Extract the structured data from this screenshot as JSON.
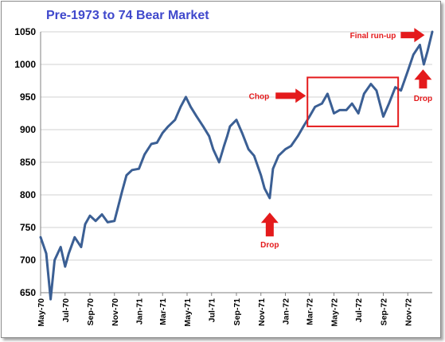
{
  "colors": {
    "title": "#3f48cc",
    "line": "#3b5f94",
    "annotation": "#e41a1c",
    "grid": "#d0d0d0",
    "axis": "#808080"
  },
  "chart_data": {
    "type": "line",
    "title": "Pre-1973 to 74 Bear Market",
    "xlabel": "",
    "ylabel": "",
    "ylim": [
      650,
      1050
    ],
    "yticks": [
      650,
      700,
      750,
      800,
      850,
      900,
      950,
      1000,
      1050
    ],
    "xlim": [
      "1970-05",
      "1973-01"
    ],
    "xticks": [
      "May-70",
      "Jul-70",
      "Sep-70",
      "Nov-70",
      "Jan-71",
      "Mar-71",
      "May-71",
      "Jul-71",
      "Sep-71",
      "Nov-71",
      "Jan-72",
      "Mar-72",
      "May-72",
      "Jul-72",
      "Sep-72",
      "Nov-72"
    ],
    "grid": "horizontal",
    "legend": "none",
    "series": [
      {
        "x": [
          "1970-05-01",
          "1970-05-15",
          "1970-05-26",
          "1970-06-05",
          "1970-06-20",
          "1970-07-01",
          "1970-07-10",
          "1970-07-25",
          "1970-08-10",
          "1970-08-20",
          "1970-09-01",
          "1970-09-15",
          "1970-10-01",
          "1970-10-15",
          "1970-11-01",
          "1970-11-20",
          "1970-12-01",
          "1970-12-15",
          "1971-01-01",
          "1971-01-15",
          "1971-02-01",
          "1971-02-15",
          "1971-03-01",
          "1971-03-15",
          "1971-04-01",
          "1971-04-15",
          "1971-04-28",
          "1971-05-10",
          "1971-05-25",
          "1971-06-10",
          "1971-06-25",
          "1971-07-05",
          "1971-07-20",
          "1971-08-01",
          "1971-08-09",
          "1971-08-16",
          "1971-09-01",
          "1971-09-15",
          "1971-10-01",
          "1971-10-15",
          "1971-11-01",
          "1971-11-10",
          "1971-11-23",
          "1971-12-01",
          "1971-12-15",
          "1972-01-01",
          "1972-01-15",
          "1972-02-01",
          "1972-02-15",
          "1972-03-01",
          "1972-03-15",
          "1972-04-01",
          "1972-04-15",
          "1972-05-01",
          "1972-05-15",
          "1972-06-01",
          "1972-06-15",
          "1972-07-01",
          "1972-07-15",
          "1972-08-01",
          "1972-08-15",
          "1972-09-01",
          "1972-09-15",
          "1972-10-01",
          "1972-10-15",
          "1972-11-01",
          "1972-11-15",
          "1972-12-01",
          "1972-12-11",
          "1972-12-20",
          "1973-01-01"
        ],
        "values": [
          735,
          710,
          640,
          700,
          720,
          690,
          710,
          735,
          720,
          755,
          768,
          760,
          770,
          758,
          760,
          805,
          830,
          838,
          840,
          862,
          878,
          880,
          895,
          905,
          915,
          935,
          950,
          935,
          920,
          905,
          890,
          870,
          850,
          875,
          890,
          905,
          915,
          895,
          870,
          860,
          830,
          810,
          795,
          840,
          860,
          870,
          875,
          890,
          905,
          920,
          935,
          940,
          955,
          925,
          930,
          930,
          940,
          925,
          955,
          970,
          960,
          920,
          940,
          965,
          960,
          990,
          1015,
          1030,
          1000,
          1020,
          1050
        ]
      }
    ],
    "annotations": [
      {
        "text": "Chop",
        "date": "1971-12-01",
        "value": 952
      },
      {
        "text": "Drop",
        "date": "1971-11-23",
        "value": 790
      },
      {
        "text": "Drop",
        "date": "1972-12-11",
        "value": 990
      },
      {
        "text": "Final run-up",
        "date": "1972-12-05",
        "value": 1045
      }
    ],
    "highlight_box": {
      "x0": "1972-02-25",
      "x1": "1972-10-08",
      "y0": 905,
      "y1": 980
    }
  }
}
